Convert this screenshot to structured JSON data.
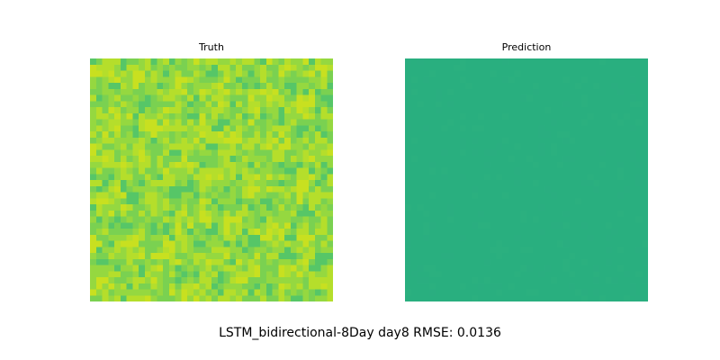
{
  "chart_data": [
    {
      "type": "heatmap",
      "title": "Truth",
      "grid": [
        40,
        40
      ],
      "colormap": "viridis",
      "value_range_normalized": [
        0.6,
        0.85
      ],
      "pattern": "noisy mottled field (yellow-green)",
      "colors": [
        "#56c667",
        "#7ad151",
        "#95d840",
        "#b5de2b",
        "#c8e020"
      ]
    },
    {
      "type": "heatmap",
      "title": "Prediction",
      "grid": [
        40,
        40
      ],
      "colormap": "viridis",
      "value_range_normalized": [
        0.62,
        0.63
      ],
      "pattern": "near-uniform field",
      "colors": [
        "#2aae80",
        "#29af7f",
        "#2bb07f"
      ]
    }
  ],
  "caption": "LSTM_bidirectional-8Day day8 RMSE: 0.0136"
}
